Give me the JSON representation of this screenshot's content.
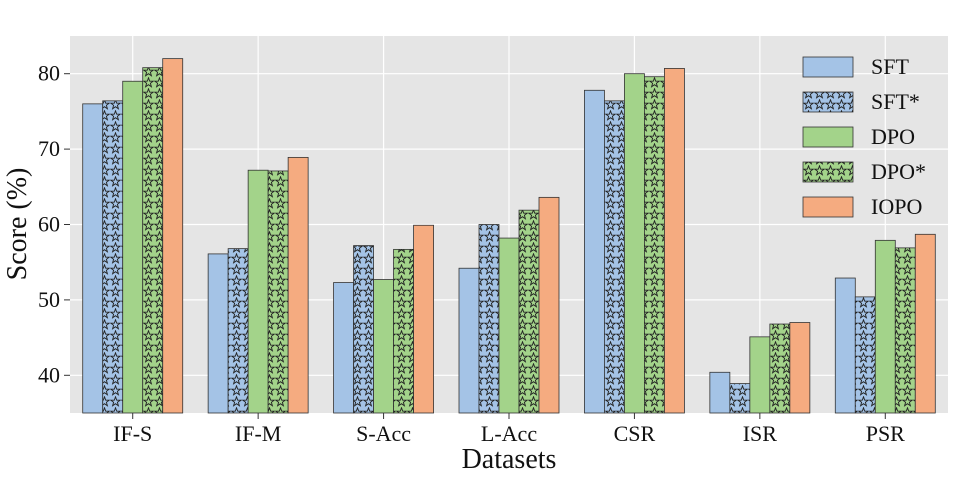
{
  "chart_data": {
    "type": "bar",
    "title": "",
    "xlabel": "Datasets",
    "ylabel": "Score (%)",
    "ylim": [
      35,
      85
    ],
    "yticks": [
      40,
      50,
      60,
      70,
      80
    ],
    "grid": true,
    "legend_position": "top-right",
    "categories": [
      "IF-S",
      "IF-M",
      "S-Acc",
      "L-Acc",
      "CSR",
      "ISR",
      "PSR"
    ],
    "series": [
      {
        "name": "SFT",
        "color": "#a4c3e6",
        "pattern": "none",
        "values": [
          76.0,
          56.1,
          52.3,
          54.2,
          77.8,
          40.4,
          52.9
        ]
      },
      {
        "name": "SFT*",
        "color": "#a4c3e6",
        "pattern": "stars",
        "values": [
          76.4,
          56.8,
          57.2,
          60.0,
          76.4,
          38.9,
          50.4
        ]
      },
      {
        "name": "DPO",
        "color": "#a3d38a",
        "pattern": "none",
        "values": [
          79.0,
          67.2,
          52.7,
          58.2,
          80.0,
          45.1,
          57.9
        ]
      },
      {
        "name": "DPO*",
        "color": "#a3d38a",
        "pattern": "stars",
        "values": [
          80.8,
          67.1,
          56.7,
          61.9,
          79.6,
          46.8,
          56.9
        ]
      },
      {
        "name": "IOPO",
        "color": "#f5ab80",
        "pattern": "none",
        "values": [
          82.0,
          68.9,
          59.9,
          63.6,
          80.7,
          47.0,
          58.7
        ]
      }
    ]
  }
}
